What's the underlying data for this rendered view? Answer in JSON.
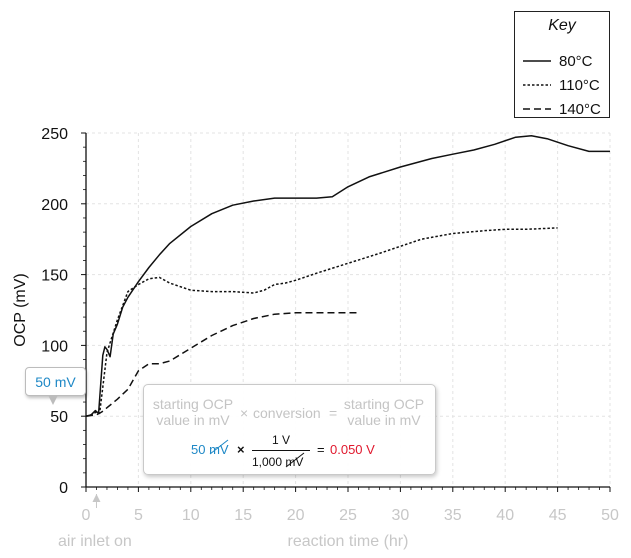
{
  "chart_data": {
    "type": "line",
    "xlabel": "reaction time (hr)",
    "ylabel": "OCP (mV)",
    "xlim": [
      0,
      50
    ],
    "ylim": [
      0,
      250
    ],
    "xticks": [
      0,
      5,
      10,
      15,
      20,
      25,
      30,
      35,
      40,
      45,
      50
    ],
    "yticks": [
      0,
      50,
      100,
      150,
      200,
      250
    ],
    "grid": true,
    "legend": {
      "title": "Key",
      "placement": "top-right, outside plot",
      "entries": [
        {
          "label": "80°C",
          "style": "solid"
        },
        {
          "label": "110°C",
          "style": "dotted"
        },
        {
          "label": "140°C",
          "style": "dashed"
        }
      ]
    },
    "series": [
      {
        "name": "80°C",
        "style": "solid",
        "x": [
          0,
          0.5,
          0.9,
          1.2,
          1.6,
          1.8,
          2.0,
          2.3,
          2.6,
          3.0,
          3.5,
          4.0,
          5.0,
          6.0,
          7.0,
          8.0,
          10.0,
          12.0,
          14.0,
          16.0,
          18.0,
          20.0,
          22.0,
          23.5,
          25.0,
          27.0,
          30.0,
          33.0,
          35.0,
          37.0,
          39.0,
          41.0,
          42.5,
          44.0,
          46.0,
          48.0,
          50.0
        ],
        "y": [
          50,
          51,
          54,
          52,
          93,
          99,
          97,
          92,
          108,
          115,
          127,
          134,
          145,
          155,
          164,
          172,
          184,
          193,
          199,
          202,
          204,
          204,
          204,
          205,
          212,
          219,
          226,
          232,
          235,
          238,
          242,
          247,
          248,
          246,
          241,
          237,
          237
        ]
      },
      {
        "name": "110°C",
        "style": "dotted",
        "x": [
          0,
          0.5,
          1.0,
          1.3,
          2.0,
          3.0,
          4.0,
          5.0,
          6.0,
          7.0,
          8.0,
          10.0,
          12.0,
          14.0,
          16.0,
          17.0,
          18.0,
          19.0,
          20.0,
          22.0,
          25.0,
          28.0,
          30.0,
          32.0,
          35.0,
          38.0,
          40.0,
          42.0,
          45.0
        ],
        "y": [
          50,
          51,
          53,
          52,
          95,
          118,
          138,
          143,
          147,
          148,
          144,
          139,
          138,
          138,
          137,
          139,
          143,
          144,
          146,
          151,
          158,
          165,
          170,
          175,
          179,
          181,
          182,
          182,
          183
        ]
      },
      {
        "name": "140°C",
        "style": "dashed",
        "x": [
          0,
          1.0,
          1.5,
          2.0,
          3.0,
          4.0,
          5.0,
          6.0,
          7.0,
          8.0,
          10.0,
          12.0,
          14.0,
          16.0,
          18.0,
          20.0,
          22.0,
          24.0,
          26.0
        ],
        "y": [
          50,
          51,
          53,
          56,
          62,
          69,
          82,
          87,
          87,
          89,
          98,
          107,
          114,
          119,
          122,
          123,
          123,
          123,
          123
        ]
      }
    ],
    "annotations": [
      {
        "text": "air inlet on",
        "x": 1
      },
      {
        "text": "50 mV",
        "x": 0,
        "y": 50
      }
    ]
  },
  "equation": {
    "term1": [
      "starting OCP",
      "value in mV"
    ],
    "times": "×",
    "term2": "conversion",
    "equals": "=",
    "term3": [
      "starting OCP",
      "value in mV"
    ],
    "value": "50",
    "unit": "mV",
    "numerator": "1 V",
    "denominator_value": "1,000",
    "denominator_unit": "mV",
    "result": "0.050 V"
  },
  "callout": {
    "text": "50 mV"
  },
  "key": {
    "title": "Key"
  },
  "colors": {
    "blue": "#1e88c6",
    "red": "#e0182d",
    "grey": "#c4c4c4"
  }
}
